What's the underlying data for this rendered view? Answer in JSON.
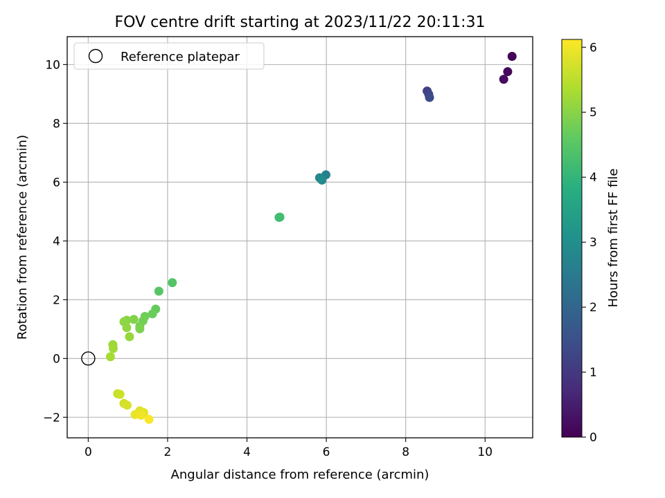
{
  "chart_data": {
    "type": "scatter",
    "title": "FOV centre drift starting at 2023/11/22 20:11:31",
    "xlabel": "Angular distance from reference (arcmin)",
    "ylabel": "Rotation from reference (arcmin)",
    "xlim": [
      -0.53,
      11.2
    ],
    "ylim": [
      -2.7,
      10.95
    ],
    "xticks": [
      0,
      2,
      4,
      6,
      8,
      10
    ],
    "yticks": [
      -2,
      0,
      2,
      4,
      6,
      8,
      10
    ],
    "grid": true,
    "legend": {
      "placement": "top-left",
      "entries": [
        "Reference platepar"
      ]
    },
    "reference_point": {
      "x": 0,
      "y": 0,
      "label": "Reference platepar"
    },
    "colorbar": {
      "label": "Hours from first FF file",
      "range": [
        0,
        6.12
      ],
      "ticks": [
        0,
        1,
        2,
        3,
        4,
        5,
        6
      ],
      "colormap": "viridis"
    },
    "series": [
      {
        "points": [
          {
            "x": 10.68,
            "y": 10.28,
            "c": 0.05
          },
          {
            "x": 10.57,
            "y": 9.76,
            "c": 0.12
          },
          {
            "x": 10.47,
            "y": 9.5,
            "c": 0.2
          },
          {
            "x": 8.54,
            "y": 9.1,
            "c": 1.2
          },
          {
            "x": 8.58,
            "y": 8.99,
            "c": 1.3
          },
          {
            "x": 8.6,
            "y": 8.88,
            "c": 1.4
          },
          {
            "x": 5.99,
            "y": 6.25,
            "c": 2.7
          },
          {
            "x": 5.83,
            "y": 6.15,
            "c": 2.85
          },
          {
            "x": 5.89,
            "y": 6.07,
            "c": 2.95
          },
          {
            "x": 4.81,
            "y": 4.8,
            "c": 4.2
          },
          {
            "x": 4.83,
            "y": 4.81,
            "c": 4.25
          },
          {
            "x": 2.12,
            "y": 2.58,
            "c": 4.45
          },
          {
            "x": 1.78,
            "y": 2.29,
            "c": 4.5
          },
          {
            "x": 1.7,
            "y": 1.68,
            "c": 4.65
          },
          {
            "x": 1.62,
            "y": 1.52,
            "c": 4.7
          },
          {
            "x": 1.43,
            "y": 1.43,
            "c": 4.75
          },
          {
            "x": 1.38,
            "y": 1.28,
            "c": 4.8
          },
          {
            "x": 1.3,
            "y": 1.1,
            "c": 4.85
          },
          {
            "x": 1.3,
            "y": 1.01,
            "c": 4.9
          },
          {
            "x": 1.15,
            "y": 1.33,
            "c": 4.95
          },
          {
            "x": 0.97,
            "y": 1.3,
            "c": 5.0
          },
          {
            "x": 0.9,
            "y": 1.25,
            "c": 5.05
          },
          {
            "x": 0.97,
            "y": 1.05,
            "c": 5.1
          },
          {
            "x": 1.04,
            "y": 0.74,
            "c": 5.15
          },
          {
            "x": 0.62,
            "y": 0.47,
            "c": 5.2
          },
          {
            "x": 0.63,
            "y": 0.34,
            "c": 5.25
          },
          {
            "x": 0.56,
            "y": 0.06,
            "c": 5.3
          },
          {
            "x": 0.74,
            "y": -1.2,
            "c": 5.6
          },
          {
            "x": 0.8,
            "y": -1.22,
            "c": 5.65
          },
          {
            "x": 0.9,
            "y": -1.53,
            "c": 5.7
          },
          {
            "x": 0.98,
            "y": -1.59,
            "c": 5.75
          },
          {
            "x": 1.3,
            "y": -1.78,
            "c": 5.85
          },
          {
            "x": 1.4,
            "y": -1.84,
            "c": 5.9
          },
          {
            "x": 1.18,
            "y": -1.91,
            "c": 5.95
          },
          {
            "x": 1.33,
            "y": -1.93,
            "c": 6.0
          },
          {
            "x": 1.53,
            "y": -2.07,
            "c": 6.1
          }
        ]
      }
    ]
  }
}
